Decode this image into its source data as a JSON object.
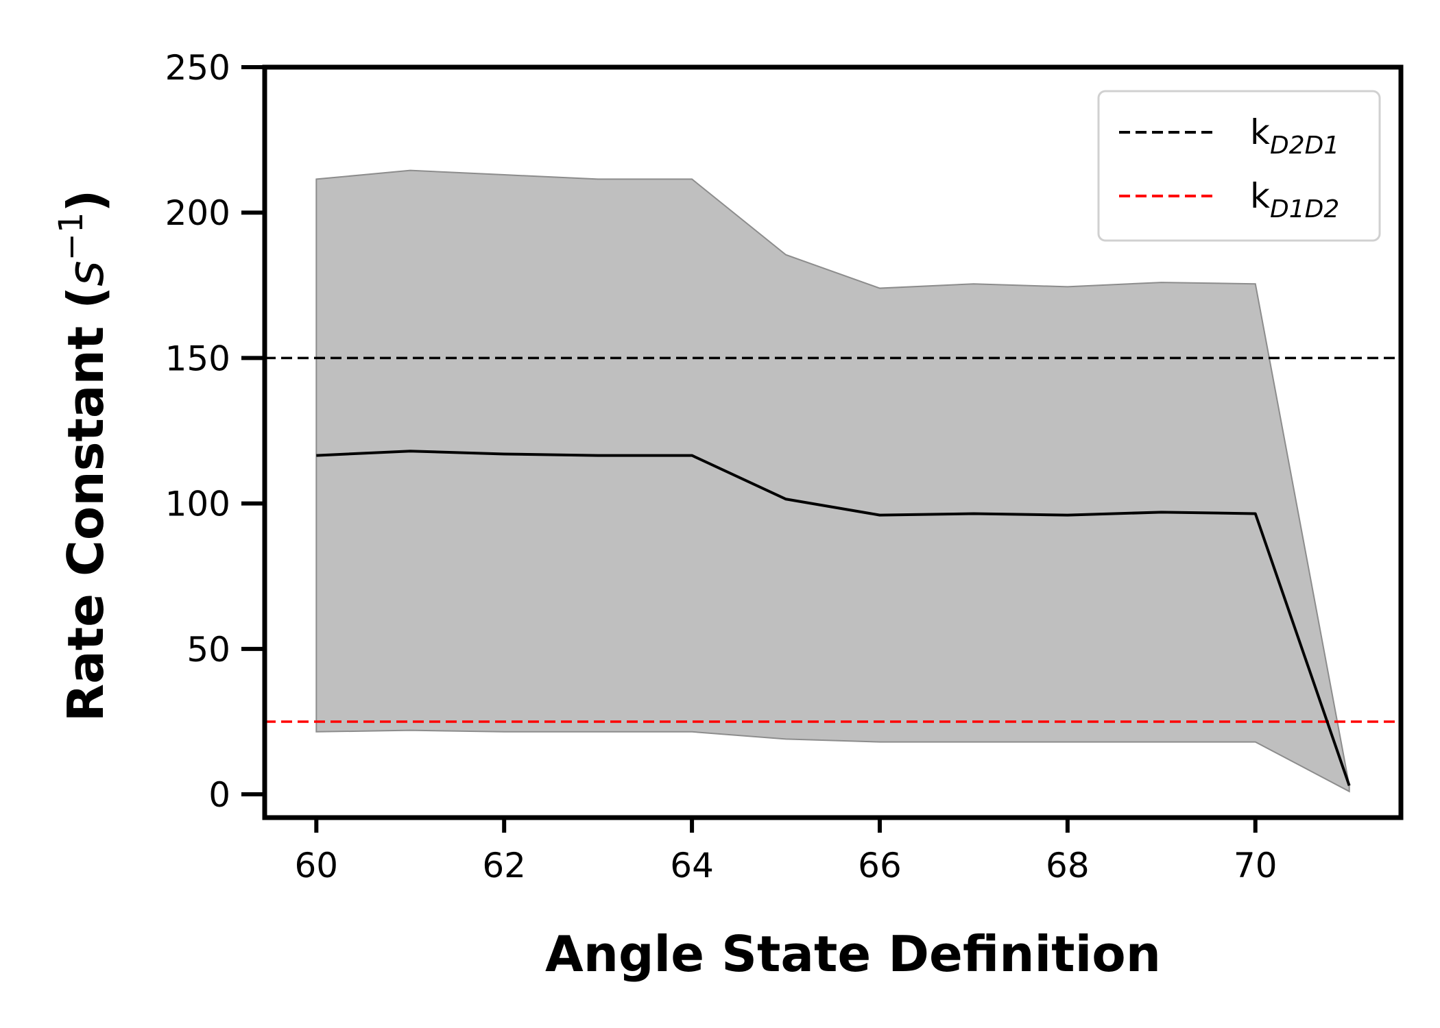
{
  "chart_data": {
    "type": "line",
    "title": "",
    "xlabel": "Angle State Definition",
    "ylabel": {
      "text": "Rate Constant (",
      "unit_base": "s",
      "unit_exp": "−1",
      "close": ")"
    },
    "xlim": [
      59.45,
      71.55
    ],
    "ylim": [
      -8,
      250
    ],
    "xticks": [
      60,
      62,
      64,
      66,
      68,
      70
    ],
    "yticks": [
      0,
      50,
      100,
      150,
      200,
      250
    ],
    "grid": false,
    "legend": {
      "placement": "top-right",
      "entries": [
        {
          "base": "k",
          "sub": "D2D1",
          "color": "#000000",
          "style": "dashed"
        },
        {
          "base": "k",
          "sub": "D1D2",
          "color": "#ff0000",
          "style": "dashed"
        }
      ]
    },
    "series": [
      {
        "type": "line",
        "color": "#000000",
        "x": [
          60,
          61,
          62,
          63,
          64,
          65,
          66,
          67,
          68,
          69,
          70,
          71
        ],
        "y": [
          116.5,
          118,
          117,
          116.5,
          116.5,
          101.5,
          96,
          96.5,
          96,
          97,
          96.5,
          3
        ]
      }
    ],
    "band": {
      "type": "area",
      "color": "#bfbfbf",
      "x": [
        60,
        61,
        62,
        63,
        64,
        65,
        66,
        67,
        68,
        69,
        70,
        71
      ],
      "upper": [
        211.5,
        214.5,
        213,
        211.5,
        211.5,
        185.5,
        174,
        175.5,
        174.5,
        176,
        175.5,
        3
      ],
      "lower": [
        21.5,
        22,
        21.5,
        21.5,
        21.5,
        19,
        18,
        18,
        18,
        18,
        18,
        1
      ]
    },
    "hlines": [
      {
        "y": 150,
        "color": "#000000",
        "style": "dashed",
        "label": "kD2D1"
      },
      {
        "y": 25,
        "color": "#ff0000",
        "style": "dashed",
        "label": "kD1D2"
      }
    ]
  }
}
